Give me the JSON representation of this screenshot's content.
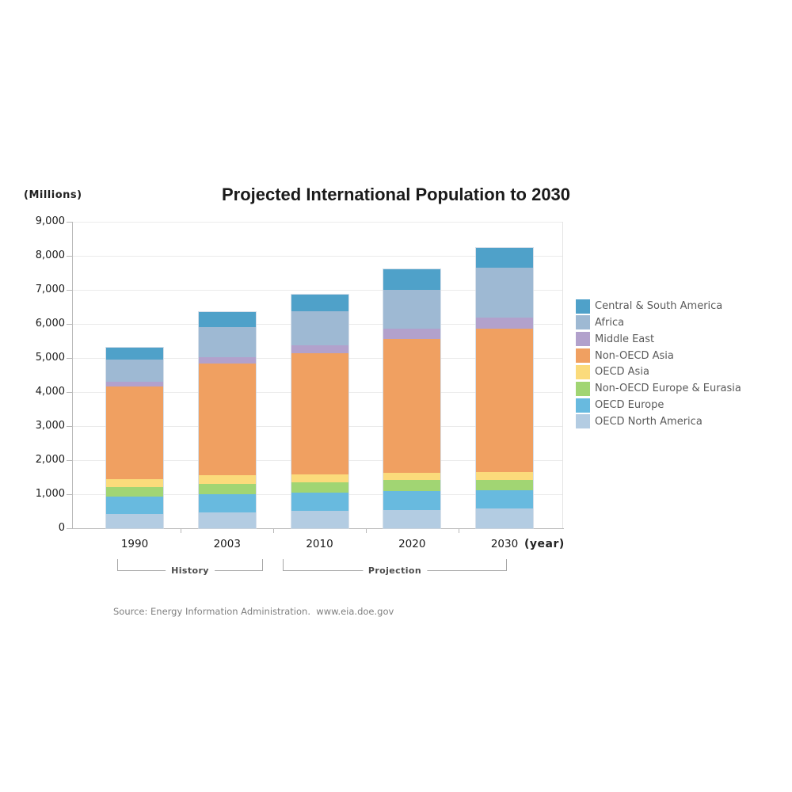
{
  "header": {
    "title": "Projected International Population to 2030",
    "y_axis_unit_label": "(Millions)"
  },
  "x_axis": {
    "unit_label": "(year)",
    "groups": {
      "history_label": "History",
      "projection_label": "Projection"
    }
  },
  "footer": {
    "source": "Source: Energy Information Administration.  www.eia.doe.gov"
  },
  "chart_data": {
    "type": "bar",
    "stacked": true,
    "title": "Projected International Population to 2030",
    "ylabel": "(Millions)",
    "xlabel": "(year)",
    "ylim": [
      0,
      9000
    ],
    "ytick_step": 1000,
    "grid": true,
    "legend_position": "right",
    "categories": [
      "1990",
      "2003",
      "2010",
      "2020",
      "2030"
    ],
    "category_groups": [
      {
        "label": "History",
        "categories": [
          "1990",
          "2003"
        ]
      },
      {
        "label": "Projection",
        "categories": [
          "2010",
          "2020",
          "2030"
        ]
      }
    ],
    "series_note": "values in millions, listed bottom-to-top of stack; legend shows reverse order",
    "series": [
      {
        "name": "OECD North America",
        "color": "#b3cce2",
        "values": [
          410,
          460,
          500,
          540,
          570
        ]
      },
      {
        "name": "OECD Europe",
        "color": "#68badf",
        "values": [
          510,
          540,
          545,
          550,
          550
        ]
      },
      {
        "name": "Non-OECD Europe & Eurasia",
        "color": "#a1d573",
        "values": [
          290,
          310,
          315,
          320,
          300
        ]
      },
      {
        "name": "OECD Asia",
        "color": "#fbdb7b",
        "values": [
          240,
          240,
          220,
          210,
          220
        ]
      },
      {
        "name": "Non-OECD Asia",
        "color": "#f0a061",
        "values": [
          2720,
          3290,
          3560,
          3940,
          4230
        ]
      },
      {
        "name": "Middle East",
        "color": "#b2a1cc",
        "values": [
          140,
          190,
          230,
          290,
          310
        ]
      },
      {
        "name": "Africa",
        "color": "#9eb9d3",
        "values": [
          640,
          880,
          1010,
          1160,
          1470
        ]
      },
      {
        "name": "Central & South America",
        "color": "#4fa1c9",
        "values": [
          350,
          430,
          490,
          590,
          580
        ]
      }
    ],
    "totals": [
      5300,
      6340,
      6870,
      7600,
      8230
    ]
  }
}
